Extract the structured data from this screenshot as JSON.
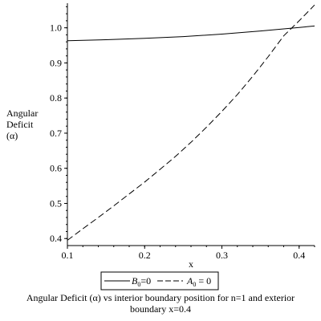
{
  "chart_data": {
    "type": "line",
    "xlabel": "x",
    "ylabel_lines": [
      "Angular",
      "Deficit",
      "(α)"
    ],
    "xlim": [
      0.1,
      0.42
    ],
    "ylim": [
      0.38,
      1.07
    ],
    "x_ticks": [
      0.1,
      0.2,
      0.3,
      0.4
    ],
    "x_tick_labels": [
      "0.1",
      "0.2",
      "0.3",
      "0.4"
    ],
    "y_ticks": [
      0.4,
      0.5,
      0.6,
      0.7,
      0.8,
      0.9,
      1.0
    ],
    "y_tick_labels": [
      "0.4",
      "0.5",
      "0.6",
      "0.7",
      "0.8",
      "0.9",
      "1.0"
    ],
    "grid": false,
    "legend_position": "bottom",
    "series": [
      {
        "label_var": "B",
        "label_sub": "0",
        "label_rest": "=0",
        "style": "solid",
        "color": "#000000",
        "x": [
          0.1,
          0.15,
          0.2,
          0.25,
          0.3,
          0.35,
          0.4,
          0.42
        ],
        "y": [
          0.963,
          0.966,
          0.97,
          0.975,
          0.982,
          0.991,
          1.001,
          1.005
        ]
      },
      {
        "label_var": "A",
        "label_sub": "0",
        "label_rest": " = 0",
        "style": "dashed",
        "color": "#000000",
        "x": [
          0.1,
          0.12,
          0.14,
          0.16,
          0.18,
          0.2,
          0.22,
          0.24,
          0.26,
          0.28,
          0.3,
          0.32,
          0.34,
          0.36,
          0.38,
          0.4,
          0.42
        ],
        "y": [
          0.395,
          0.428,
          0.46,
          0.493,
          0.527,
          0.561,
          0.597,
          0.634,
          0.674,
          0.717,
          0.762,
          0.81,
          0.862,
          0.918,
          0.977,
          1.02,
          1.065
        ]
      }
    ]
  },
  "caption": {
    "line1": "Angular Deficit (α)  vs interior boundary position for n=1 and exterior",
    "line2": "boundary x=0.4"
  }
}
